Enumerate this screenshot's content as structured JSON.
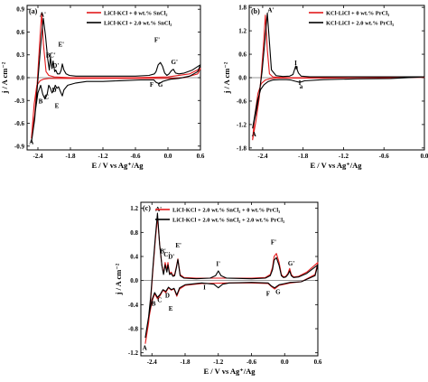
{
  "chart_data": [
    {
      "type": "line",
      "panel": "(a)",
      "xlabel": "E / V vs Ag⁺/Ag",
      "ylabel": "j / A cm⁻²",
      "xlim": [
        -2.6,
        0.6
      ],
      "ylim": [
        -0.95,
        0.95
      ],
      "xticks": [
        "-2.4",
        "-1.8",
        "-1.2",
        "-0.6",
        "0.0",
        "0.6"
      ],
      "xtick_values": [
        -2.4,
        -1.8,
        -1.2,
        -0.6,
        0.0,
        0.6
      ],
      "yticks": [
        "-0.9",
        "-0.6",
        "-0.3",
        "0.0",
        "0.3",
        "0.6",
        "0.9"
      ],
      "ytick_values": [
        -0.9,
        -0.6,
        -0.3,
        0.0,
        0.3,
        0.6,
        0.9
      ],
      "legend_position": "top-right",
      "series": [
        {
          "name": "LiCl-KCl + 0 wt.% SnCl₂",
          "color": "#e31a1c",
          "x": [
            -2.52,
            -2.46,
            -2.42,
            -2.39,
            -2.36,
            -2.33,
            -2.3,
            -2.25,
            -2.2,
            -2.1,
            -1.8,
            -1.2,
            -0.6,
            0.0,
            0.4,
            0.6,
            0.55,
            0.3,
            0.0,
            -0.6,
            -1.2,
            -1.8,
            -2.2,
            -2.3,
            -2.36,
            -2.42,
            -2.47,
            -2.52
          ],
          "y": [
            -0.8,
            -0.5,
            -0.15,
            0.2,
            0.55,
            0.85,
            0.45,
            0.08,
            0.03,
            0.01,
            0.0,
            0.0,
            0.0,
            0.01,
            0.05,
            0.12,
            0.05,
            0.0,
            -0.01,
            -0.01,
            -0.01,
            -0.01,
            -0.01,
            -0.02,
            -0.04,
            -0.1,
            -0.35,
            -0.8
          ]
        },
        {
          "name": "LiCl-KCl + 2.0 wt.% SnCl₂",
          "color": "#000000",
          "x": [
            -2.52,
            -2.46,
            -2.42,
            -2.38,
            -2.34,
            -2.3,
            -2.26,
            -2.22,
            -2.19,
            -2.17,
            -2.14,
            -2.12,
            -2.09,
            -2.07,
            -2.04,
            -2.02,
            -2.0,
            -1.97,
            -1.95,
            -1.92,
            -1.88,
            -1.82,
            -1.7,
            -1.2,
            -0.6,
            -0.35,
            -0.25,
            -0.22,
            -0.18,
            -0.14,
            -0.1,
            -0.06,
            -0.02,
            0.02,
            0.06,
            0.1,
            0.14,
            0.2,
            0.3,
            0.45,
            0.6,
            0.55,
            0.4,
            0.2,
            0.05,
            0.0,
            -0.1,
            -0.16,
            -0.22,
            -0.26,
            -0.5,
            -0.9,
            -1.2,
            -1.5,
            -1.7,
            -1.85,
            -1.92,
            -1.95,
            -1.98,
            -2.02,
            -2.05,
            -2.08,
            -2.11,
            -2.14,
            -2.17,
            -2.2,
            -2.23,
            -2.27,
            -2.31,
            -2.35,
            -2.4,
            -2.44,
            -2.48,
            -2.52
          ],
          "y": [
            -0.85,
            -0.55,
            -0.2,
            0.15,
            0.5,
            0.78,
            0.55,
            0.25,
            0.1,
            0.27,
            0.12,
            0.22,
            0.08,
            0.1,
            0.05,
            0.05,
            0.05,
            0.1,
            0.18,
            0.1,
            0.05,
            0.03,
            0.02,
            0.02,
            0.02,
            0.03,
            0.05,
            0.08,
            0.17,
            0.2,
            0.15,
            0.06,
            0.03,
            0.05,
            0.09,
            0.11,
            0.06,
            0.05,
            0.06,
            0.1,
            0.17,
            0.08,
            0.02,
            -0.01,
            -0.02,
            -0.03,
            -0.05,
            -0.08,
            -0.06,
            -0.03,
            -0.03,
            -0.04,
            -0.05,
            -0.05,
            -0.07,
            -0.1,
            -0.16,
            -0.24,
            -0.19,
            -0.12,
            -0.14,
            -0.1,
            -0.17,
            -0.2,
            -0.14,
            -0.1,
            -0.22,
            -0.28,
            -0.22,
            -0.1,
            -0.2,
            -0.4,
            -0.65,
            -0.85
          ]
        }
      ],
      "annotations": [
        {
          "text": "A",
          "x": -2.52,
          "y": -0.87
        },
        {
          "text": "A'",
          "x": -2.31,
          "y": 0.8
        },
        {
          "text": "B",
          "x": -2.35,
          "y": -0.34
        },
        {
          "text": "B'",
          "x": -2.2,
          "y": 0.27
        },
        {
          "text": "C",
          "x": -2.24,
          "y": -0.28
        },
        {
          "text": "C'",
          "x": -2.13,
          "y": 0.27
        },
        {
          "text": "D",
          "x": -2.1,
          "y": -0.19
        },
        {
          "text": "D'",
          "x": -2.07,
          "y": 0.13
        },
        {
          "text": "E",
          "x": -2.05,
          "y": -0.4
        },
        {
          "text": "E'",
          "x": -1.97,
          "y": 0.41
        },
        {
          "text": "F",
          "x": -0.3,
          "y": -0.12
        },
        {
          "text": "F'",
          "x": -0.2,
          "y": 0.47
        },
        {
          "text": "G",
          "x": -0.14,
          "y": -0.12
        },
        {
          "text": "G'",
          "x": 0.12,
          "y": 0.18
        }
      ]
    },
    {
      "type": "line",
      "panel": "(b)",
      "xlabel": "E / V vs Ag⁺/Ag",
      "ylabel": "j / A cm⁻²",
      "xlim": [
        -2.6,
        0.0
      ],
      "ylim": [
        -1.85,
        1.85
      ],
      "xticks": [
        "-2.4",
        "-1.8",
        "-1.2",
        "-0.6",
        "0.0"
      ],
      "xtick_values": [
        -2.4,
        -1.8,
        -1.2,
        -0.6,
        0.0
      ],
      "yticks": [
        "-1.8",
        "-1.2",
        "-0.6",
        "0.0",
        "0.6",
        "1.2",
        "1.8"
      ],
      "ytick_values": [
        -1.8,
        -1.2,
        -0.6,
        0.0,
        0.6,
        1.2,
        1.8
      ],
      "legend_position": "top-right",
      "series": [
        {
          "name": "KCl-LiCl + 0 wt.% PrCl₃",
          "color": "#e31a1c",
          "x": [
            -2.55,
            -2.5,
            -2.45,
            -2.42,
            -2.39,
            -2.36,
            -2.33,
            -2.3,
            -2.25,
            -2.2,
            -2.0,
            -1.5,
            -1.0,
            -0.5,
            0.0,
            -0.5,
            -1.0,
            -1.5,
            -2.0,
            -2.2,
            -2.3,
            -2.36,
            -2.42,
            -2.47,
            -2.52,
            -2.55
          ],
          "y": [
            -1.6,
            -1.1,
            -0.5,
            0.1,
            0.8,
            1.6,
            0.7,
            0.1,
            0.02,
            0.01,
            0.0,
            0.0,
            0.0,
            0.0,
            0.01,
            0.0,
            0.0,
            -0.01,
            -0.01,
            -0.01,
            -0.03,
            -0.06,
            -0.15,
            -0.4,
            -1.0,
            -1.6
          ]
        },
        {
          "name": "KCl-LiCl + 2.0 wt.% PrCl₃",
          "color": "#000000",
          "x": [
            -2.55,
            -2.5,
            -2.45,
            -2.41,
            -2.37,
            -2.33,
            -2.3,
            -2.27,
            -2.2,
            -2.1,
            -2.0,
            -1.95,
            -1.91,
            -1.87,
            -1.83,
            -1.7,
            -1.4,
            -1.0,
            -0.5,
            0.0,
            -0.5,
            -1.0,
            -1.5,
            -1.78,
            -1.85,
            -1.92,
            -1.98,
            -2.05,
            -2.15,
            -2.25,
            -2.32,
            -2.38,
            -2.43,
            -2.48,
            -2.52,
            -2.55
          ],
          "y": [
            -1.3,
            -0.9,
            -0.4,
            0.15,
            0.9,
            1.65,
            0.9,
            0.2,
            0.05,
            0.03,
            0.04,
            0.08,
            0.3,
            0.12,
            0.04,
            0.02,
            0.02,
            0.02,
            0.02,
            0.02,
            -0.02,
            -0.03,
            -0.05,
            -0.08,
            -0.12,
            -0.09,
            -0.06,
            -0.05,
            -0.05,
            -0.06,
            -0.1,
            -0.18,
            -0.3,
            -0.6,
            -1.0,
            -1.3
          ]
        }
      ],
      "annotations": [
        {
          "text": "A",
          "x": -2.53,
          "y": -1.5
        },
        {
          "text": "A'",
          "x": -2.28,
          "y": 1.68
        },
        {
          "text": "I",
          "x": -1.91,
          "y": 0.32
        },
        {
          "text": "a",
          "x": -1.9,
          "y": 0.22
        },
        {
          "text": "I",
          "x": -1.85,
          "y": -0.18
        },
        {
          "text": "a",
          "x": -1.83,
          "y": -0.28
        }
      ]
    },
    {
      "type": "line",
      "panel": "(c)",
      "xlabel": "E / V vs Ag⁺/Ag",
      "ylabel": "j / A cm⁻²",
      "xlim": [
        -2.6,
        0.6
      ],
      "ylim": [
        -1.25,
        1.3
      ],
      "xticks": [
        "-2.4",
        "-1.8",
        "-1.2",
        "-0.6",
        "0.0",
        "0.6"
      ],
      "xtick_values": [
        -2.4,
        -1.8,
        -1.2,
        -0.6,
        0.0,
        0.6
      ],
      "yticks": [
        "-1.2",
        "-0.8",
        "-0.4",
        "0.0",
        "0.4",
        "0.8",
        "1.2"
      ],
      "ytick_values": [
        -1.2,
        -0.8,
        -0.4,
        0.0,
        0.4,
        0.8,
        1.2
      ],
      "legend_position": "top-right",
      "series": [
        {
          "name": "LiCl-KCl + 2.0 wt.% SnCl₂ + 0 wt.% PrCl₃",
          "color": "#e31a1c",
          "x": [
            -2.52,
            -2.46,
            -2.42,
            -2.38,
            -2.34,
            -2.3,
            -2.26,
            -2.22,
            -2.19,
            -2.16,
            -2.13,
            -2.11,
            -2.08,
            -2.05,
            -2.02,
            -1.99,
            -1.96,
            -1.93,
            -1.89,
            -1.82,
            -1.6,
            -1.2,
            -0.6,
            -0.35,
            -0.26,
            -0.22,
            -0.19,
            -0.15,
            -0.1,
            -0.06,
            -0.02,
            0.02,
            0.06,
            0.09,
            0.12,
            0.16,
            0.25,
            0.4,
            0.6,
            0.55,
            0.3,
            0.1,
            0.0,
            -0.1,
            -0.18,
            -0.24,
            -0.3,
            -0.6,
            -1.0,
            -1.5,
            -1.8,
            -1.9,
            -1.95,
            -2.0,
            -2.05,
            -2.1,
            -2.15,
            -2.2,
            -2.25,
            -2.3,
            -2.35,
            -2.4,
            -2.44,
            -2.48,
            -2.52
          ],
          "y": [
            -1.05,
            -0.7,
            -0.3,
            0.2,
            0.65,
            1.05,
            0.6,
            0.25,
            0.12,
            0.3,
            0.18,
            0.3,
            0.12,
            0.14,
            0.08,
            0.1,
            0.22,
            0.36,
            0.1,
            0.05,
            0.04,
            0.04,
            0.04,
            0.05,
            0.1,
            0.22,
            0.4,
            0.45,
            0.3,
            0.1,
            0.06,
            0.07,
            0.12,
            0.2,
            0.1,
            0.06,
            0.07,
            0.14,
            0.3,
            0.1,
            -0.02,
            -0.04,
            -0.06,
            -0.08,
            -0.14,
            -0.1,
            -0.05,
            -0.04,
            -0.04,
            -0.05,
            -0.08,
            -0.14,
            -0.26,
            -0.14,
            -0.16,
            -0.12,
            -0.2,
            -0.16,
            -0.25,
            -0.3,
            -0.22,
            -0.35,
            -0.55,
            -0.8,
            -1.05
          ]
        },
        {
          "name": "LiCl-KCl + 2.0 wt.% SnCl₂ + 2.0 wt.% PrCl₃",
          "color": "#000000",
          "x": [
            -2.52,
            -2.46,
            -2.42,
            -2.38,
            -2.34,
            -2.3,
            -2.26,
            -2.22,
            -2.19,
            -2.16,
            -2.13,
            -2.11,
            -2.08,
            -2.05,
            -2.02,
            -1.99,
            -1.96,
            -1.93,
            -1.89,
            -1.82,
            -1.6,
            -1.35,
            -1.25,
            -1.2,
            -1.15,
            -1.05,
            -0.6,
            -0.35,
            -0.26,
            -0.22,
            -0.19,
            -0.15,
            -0.1,
            -0.06,
            -0.02,
            0.02,
            0.06,
            0.09,
            0.12,
            0.16,
            0.25,
            0.4,
            0.6,
            0.55,
            0.3,
            0.1,
            0.0,
            -0.1,
            -0.18,
            -0.24,
            -0.3,
            -0.6,
            -1.0,
            -1.12,
            -1.2,
            -1.28,
            -1.5,
            -1.8,
            -1.9,
            -1.95,
            -2.0,
            -2.05,
            -2.1,
            -2.15,
            -2.2,
            -2.25,
            -2.3,
            -2.35,
            -2.4,
            -2.44,
            -2.48,
            -2.52
          ],
          "y": [
            -0.95,
            -0.6,
            -0.25,
            0.25,
            0.7,
            1.12,
            0.6,
            0.25,
            0.1,
            0.26,
            0.14,
            0.26,
            0.1,
            0.12,
            0.07,
            0.08,
            0.2,
            0.35,
            0.08,
            0.04,
            0.03,
            0.04,
            0.08,
            0.16,
            0.08,
            0.04,
            0.03,
            0.04,
            0.08,
            0.18,
            0.34,
            0.38,
            0.25,
            0.08,
            0.05,
            0.06,
            0.1,
            0.16,
            0.08,
            0.05,
            0.06,
            0.12,
            0.26,
            0.08,
            -0.02,
            -0.03,
            -0.05,
            -0.07,
            -0.12,
            -0.09,
            -0.04,
            -0.03,
            -0.04,
            -0.06,
            -0.12,
            -0.06,
            -0.04,
            -0.07,
            -0.12,
            -0.24,
            -0.13,
            -0.15,
            -0.11,
            -0.18,
            -0.15,
            -0.23,
            -0.28,
            -0.2,
            -0.32,
            -0.5,
            -0.72,
            -0.95
          ]
        }
      ],
      "annotations": [
        {
          "text": "A",
          "x": -2.53,
          "y": -1.15
        },
        {
          "text": "A'",
          "x": -2.28,
          "y": 1.15
        },
        {
          "text": "B",
          "x": -2.37,
          "y": -0.42
        },
        {
          "text": "B'",
          "x": -2.2,
          "y": 0.45
        },
        {
          "text": "C",
          "x": -2.26,
          "y": -0.36
        },
        {
          "text": "C'",
          "x": -2.13,
          "y": 0.4
        },
        {
          "text": "D",
          "x": -2.12,
          "y": -0.28
        },
        {
          "text": "D'",
          "x": -2.05,
          "y": 0.36
        },
        {
          "text": "E",
          "x": -2.06,
          "y": -0.5
        },
        {
          "text": "E'",
          "x": -1.92,
          "y": 0.55
        },
        {
          "text": "I",
          "x": -1.45,
          "y": -0.15
        },
        {
          "text": "I'",
          "x": -1.2,
          "y": 0.24
        },
        {
          "text": "F",
          "x": -0.3,
          "y": -0.25
        },
        {
          "text": "F'",
          "x": -0.2,
          "y": 0.6
        },
        {
          "text": "G",
          "x": -0.12,
          "y": -0.22
        },
        {
          "text": "G'",
          "x": 0.12,
          "y": 0.25
        }
      ]
    }
  ]
}
